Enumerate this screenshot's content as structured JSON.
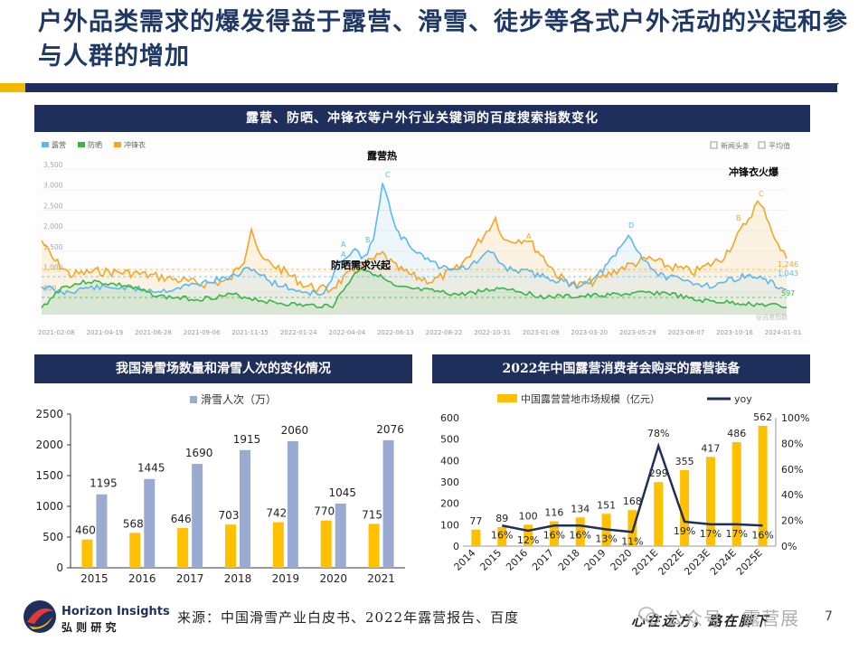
{
  "title": "户外品类需求的爆发得益于露营、滑雪、徒步等各式户外活动的兴起和参与人群的增加",
  "colors": {
    "navy": "#1f2f5c",
    "gold": "#f5b800",
    "ski_bar": "#9aabd1",
    "camp_bar": "#ffc000"
  },
  "baidu": {
    "header": "露营、防晒、冲锋衣等户外行业关键词的百度搜索指数变化",
    "legend": [
      "露营",
      "防晒",
      "冲锋衣"
    ],
    "legend_colors": [
      "#5bb8f0",
      "#39b54a",
      "#f5a623"
    ],
    "toggles": [
      "新闻头条",
      "平均值"
    ],
    "yticks": [
      "3,500",
      "3,000",
      "2,500",
      "2,000",
      "1,500",
      "1,000",
      "500"
    ],
    "xticks": [
      "2021-02-08",
      "2021-04-19",
      "2021-06-28",
      "2021-09-06",
      "2021-11-15",
      "2022-01-24",
      "2022-04-04",
      "2022-06-13",
      "2022-08-22",
      "2022-10-31",
      "2023-01-09",
      "2023-03-20",
      "2023-05-29",
      "2023-08-07",
      "2023-10-16",
      "2024-01-01"
    ],
    "avg_labels": [
      "1,246",
      "1,043",
      "597"
    ],
    "markers": [
      "A",
      "A",
      "B",
      "C",
      "A",
      "D",
      "B",
      "C"
    ],
    "annotations": {
      "camping": "露营热",
      "sunscreen": "防晒需求兴起",
      "jacket": "冲锋衣火爆"
    },
    "watermark": "@百度指数"
  },
  "ski": {
    "header": "我国滑雪场数量和滑雪人次的变化情况",
    "legend": "滑雪人次（万）",
    "yticks": [
      "0",
      "500",
      "1000",
      "1500",
      "2000",
      "2500"
    ],
    "chart_data": {
      "type": "bar",
      "categories": [
        "2015",
        "2016",
        "2017",
        "2018",
        "2019",
        "2020",
        "2021"
      ],
      "series": [
        {
          "name": "滑雪场数量",
          "values": [
            460,
            568,
            646,
            703,
            742,
            770,
            715
          ]
        },
        {
          "name": "滑雪人次（万）",
          "values": [
            1195,
            1445,
            1690,
            1915,
            2060,
            1045,
            2076
          ]
        }
      ],
      "ylim": [
        0,
        2500
      ]
    }
  },
  "camp": {
    "header": "2022年中国露营消费者会购买的露营装备",
    "legend_bar": "中国露营营地市场规模（亿元）",
    "legend_line": "yoy",
    "yticks_left": [
      "0",
      "100",
      "200",
      "300",
      "400",
      "500",
      "600"
    ],
    "yticks_right": [
      "0%",
      "20%",
      "40%",
      "60%",
      "80%",
      "100%"
    ],
    "chart_data": {
      "type": "bar",
      "categories": [
        "2014",
        "2015",
        "2016",
        "2017",
        "2018",
        "2019",
        "2020",
        "2021E",
        "2022E",
        "2023E",
        "2024E",
        "2025E"
      ],
      "series": [
        {
          "name": "中国露营营地市场规模（亿元）",
          "values": [
            77,
            89,
            100,
            116,
            134,
            151,
            168,
            299,
            355,
            417,
            486,
            562
          ]
        },
        {
          "name": "yoy",
          "values": [
            null,
            16,
            12,
            16,
            16,
            13,
            11,
            78,
            19,
            17,
            17,
            16
          ]
        }
      ],
      "yoy_labels": [
        "",
        "16%",
        "12%",
        "16%",
        "16%",
        "13%",
        "11%",
        "78%",
        "19%",
        "17%",
        "17%",
        "16%"
      ],
      "ylim": [
        0,
        600
      ],
      "y2lim": [
        0,
        100
      ]
    }
  },
  "footer": {
    "brand": "Horizon Insights",
    "brand_cn": "弘 则 研 究",
    "source": "来源：中国滑雪产业白皮书、2022年露营报告、百度",
    "motto": "心在远方，路在脚下",
    "wechat": "公众号 · 露营展",
    "page": "7"
  }
}
